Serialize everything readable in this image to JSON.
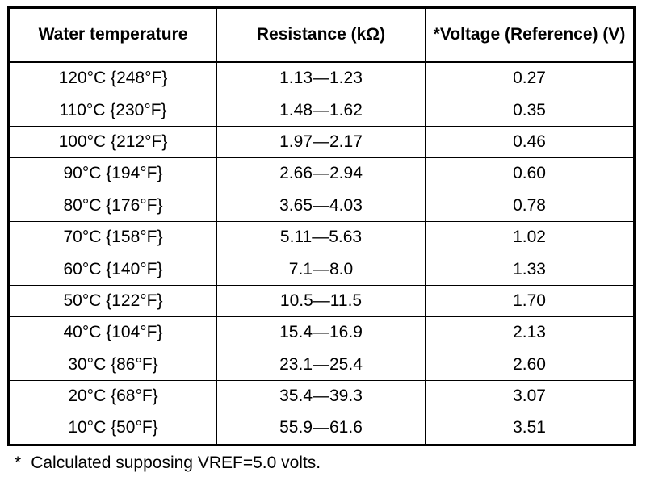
{
  "table": {
    "headers": [
      "Water temperature",
      "Resistance (kΩ)",
      "*Voltage (Reference) (V)"
    ],
    "rows": [
      [
        "120°C {248°F}",
        "1.13—1.23",
        "0.27"
      ],
      [
        "110°C {230°F}",
        "1.48—1.62",
        "0.35"
      ],
      [
        "100°C {212°F}",
        "1.97—2.17",
        "0.46"
      ],
      [
        "90°C {194°F}",
        "2.66—2.94",
        "0.60"
      ],
      [
        "80°C {176°F}",
        "3.65—4.03",
        "0.78"
      ],
      [
        "70°C {158°F}",
        "5.11—5.63",
        "1.02"
      ],
      [
        "60°C {140°F}",
        "7.1—8.0",
        "1.33"
      ],
      [
        "50°C {122°F}",
        "10.5—11.5",
        "1.70"
      ],
      [
        "40°C {104°F}",
        "15.4—16.9",
        "2.13"
      ],
      [
        "30°C {86°F}",
        "23.1—25.4",
        "2.60"
      ],
      [
        "20°C {68°F}",
        "35.4—39.3",
        "3.07"
      ],
      [
        "10°C {50°F}",
        "55.9—61.6",
        "3.51"
      ]
    ]
  },
  "footnote": {
    "mark": "*",
    "text": "Calculated supposing VREF=5.0 volts."
  }
}
